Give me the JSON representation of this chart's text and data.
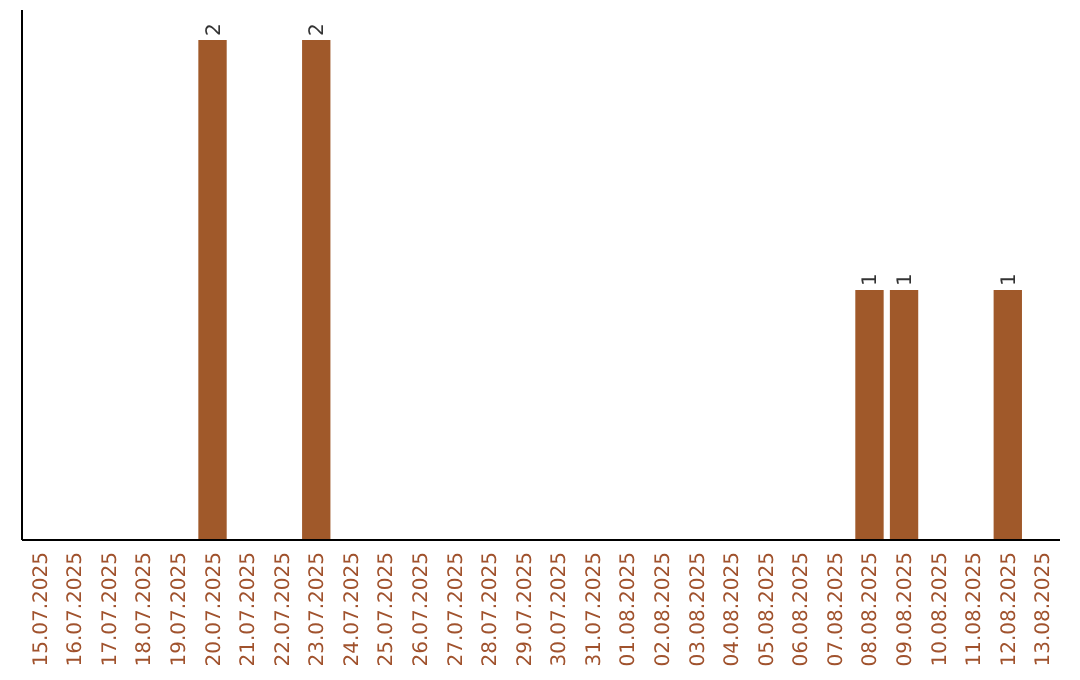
{
  "chart_data": {
    "type": "bar",
    "categories": [
      "15.07.2025",
      "16.07.2025",
      "17.07.2025",
      "18.07.2025",
      "19.07.2025",
      "20.07.2025",
      "21.07.2025",
      "22.07.2025",
      "23.07.2025",
      "24.07.2025",
      "25.07.2025",
      "26.07.2025",
      "27.07.2025",
      "28.07.2025",
      "29.07.2025",
      "30.07.2025",
      "31.07.2025",
      "01.08.2025",
      "02.08.2025",
      "03.08.2025",
      "04.08.2025",
      "05.08.2025",
      "06.08.2025",
      "07.08.2025",
      "08.08.2025",
      "09.08.2025",
      "10.08.2025",
      "11.08.2025",
      "12.08.2025",
      "13.08.2025"
    ],
    "values": [
      null,
      null,
      null,
      null,
      null,
      2,
      null,
      null,
      2,
      null,
      null,
      null,
      null,
      null,
      null,
      null,
      null,
      null,
      null,
      null,
      null,
      null,
      null,
      null,
      1,
      1,
      null,
      null,
      1,
      null
    ],
    "color": "#a0592a",
    "data_labels": true
  }
}
